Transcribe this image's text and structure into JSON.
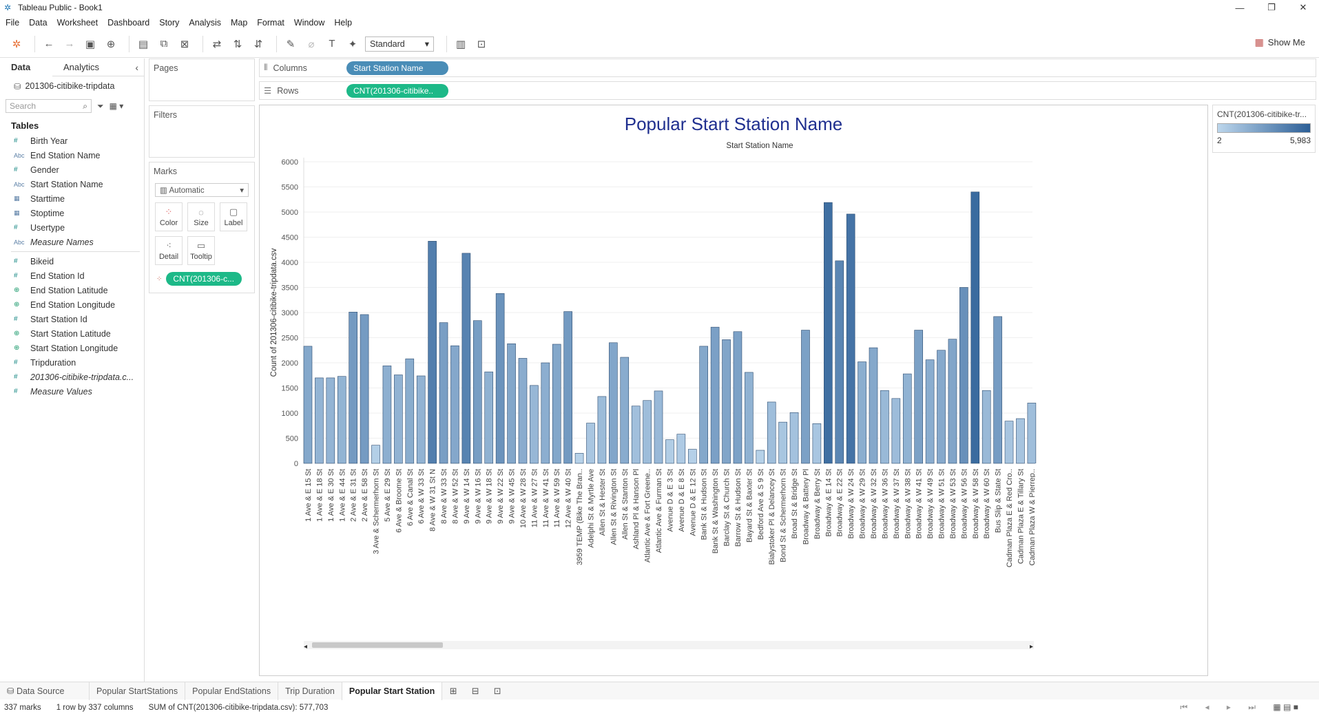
{
  "app": {
    "title": "Tableau Public - Book1"
  },
  "menu": [
    "File",
    "Data",
    "Worksheet",
    "Dashboard",
    "Story",
    "Analysis",
    "Map",
    "Format",
    "Window",
    "Help"
  ],
  "toolbar": {
    "fit_select": "Standard",
    "show_me": "Show Me"
  },
  "left_pane": {
    "tabs": [
      "Data",
      "Analytics"
    ],
    "datasource": "201306-citibike-tripdata",
    "search_placeholder": "Search",
    "tables_header": "Tables",
    "dimensions": [
      {
        "type": "#",
        "name": "Birth Year"
      },
      {
        "type": "Abc",
        "name": "End Station Name"
      },
      {
        "type": "#",
        "name": "Gender"
      },
      {
        "type": "Abc",
        "name": "Start Station Name"
      },
      {
        "type": "date",
        "name": "Starttime"
      },
      {
        "type": "date",
        "name": "Stoptime"
      },
      {
        "type": "#",
        "name": "Usertype"
      },
      {
        "type": "Abc",
        "name": "Measure Names",
        "italic": true
      }
    ],
    "measures": [
      {
        "type": "#",
        "name": "Bikeid"
      },
      {
        "type": "#",
        "name": "End Station Id"
      },
      {
        "type": "geo",
        "name": "End Station Latitude"
      },
      {
        "type": "geo",
        "name": "End Station Longitude"
      },
      {
        "type": "#",
        "name": "Start Station Id"
      },
      {
        "type": "geo",
        "name": "Start Station Latitude"
      },
      {
        "type": "geo",
        "name": "Start Station Longitude"
      },
      {
        "type": "#",
        "name": "Tripduration"
      },
      {
        "type": "#",
        "name": "201306-citibike-tripdata.c...",
        "italic": true
      },
      {
        "type": "#",
        "name": "Measure Values",
        "italic": true
      }
    ]
  },
  "cards": {
    "pages": "Pages",
    "filters": "Filters",
    "marks": "Marks",
    "marks_type": "Automatic",
    "mark_buttons": [
      "Color",
      "Size",
      "Label",
      "Detail",
      "Tooltip"
    ],
    "marks_pill": "CNT(201306-c..."
  },
  "shelves": {
    "columns_label": "Columns",
    "columns_pill": "Start Station Name",
    "rows_label": "Rows",
    "rows_pill": "CNT(201306-citibike.."
  },
  "legend": {
    "title": "CNT(201306-citibike-tr...",
    "min": "2",
    "max": "5,983",
    "low_color": "#bcd6ec",
    "high_color": "#2c5f97"
  },
  "chart_data": {
    "type": "bar",
    "title": "Popular Start Station Name",
    "column_header": "Start Station Name",
    "ylabel": "Count of 201306-citibike-tripdata.csv",
    "ylim": [
      0,
      6000
    ],
    "yticks": [
      0,
      500,
      1000,
      1500,
      2000,
      2500,
      3000,
      3500,
      4000,
      4500,
      5000,
      5500,
      6000
    ],
    "color_range": [
      2,
      5983
    ],
    "categories": [
      "1 Ave & E 15 St",
      "1 Ave & E 18 St",
      "1 Ave & E 30 St",
      "1 Ave & E 44 St",
      "2 Ave & E 31 St",
      "2 Ave & E 58 St",
      "3 Ave & Schermerhorn St",
      "5 Ave & E 29 St",
      "6 Ave & Broome St",
      "6 Ave & Canal St",
      "6 Ave & W 33 St",
      "8 Ave & W 31 St N",
      "8 Ave & W 33 St",
      "8 Ave & W 52 St",
      "9 Ave & W 14 St",
      "9 Ave & W 16 St",
      "9 Ave & W 18 St",
      "9 Ave & W 22 St",
      "9 Ave & W 45 St",
      "10 Ave & W 28 St",
      "11 Ave & W 27 St",
      "11 Ave & W 41 St",
      "11 Ave & W 59 St",
      "12 Ave & W 40 St",
      "3959 TEMP (Bike The Bran..",
      "Adelphi St & Myrtle Ave",
      "Allen St & Hester St",
      "Allen St & Rivington St",
      "Allen St & Stanton St",
      "Ashland Pl & Hanson Pl",
      "Atlantic Ave & Fort Greene..",
      "Atlantic Ave & Furman St",
      "Avenue D & E 3 St",
      "Avenue D & E 8 St",
      "Avenue D & E 12 St",
      "Bank St & Hudson St",
      "Bank St & Washington St",
      "Barclay St & Church St",
      "Barrow St & Hudson St",
      "Bayard St & Baxter St",
      "Bedford Ave & S 9 St",
      "Bialystoker Pl & Delancey St",
      "Bond St & Schermerhorn St",
      "Broad St & Bridge St",
      "Broadway & Battery Pl",
      "Broadway & Berry St",
      "Broadway & E 14 St",
      "Broadway & E 22 St",
      "Broadway & W 24 St",
      "Broadway & W 29 St",
      "Broadway & W 32 St",
      "Broadway & W 36 St",
      "Broadway & W 37 St",
      "Broadway & W 38 St",
      "Broadway & W 41 St",
      "Broadway & W 49 St",
      "Broadway & W 51 St",
      "Broadway & W 53 St",
      "Broadway & W 56 St",
      "Broadway & W 58 St",
      "Broadway & W 60 St",
      "Bus Slip & State St",
      "Cadman Plaza E & Red Cro..",
      "Cadman Plaza E & Tillary St",
      "Cadman Plaza W & Pierrep.."
    ],
    "values": [
      2330,
      1700,
      1700,
      1730,
      3010,
      2960,
      360,
      1940,
      1760,
      2080,
      1740,
      4420,
      2800,
      2340,
      4180,
      2840,
      1820,
      3380,
      2380,
      2090,
      1550,
      2000,
      2370,
      3020,
      200,
      800,
      1330,
      2400,
      2110,
      1140,
      1250,
      1440,
      470,
      580,
      280,
      2330,
      2710,
      2460,
      2620,
      1810,
      260,
      1220,
      820,
      1010,
      2650,
      790,
      5190,
      4030,
      4960,
      2020,
      2300,
      1450,
      1290,
      1780,
      2650,
      2060,
      2250,
      2470,
      3500,
      5400,
      1450,
      2920,
      840,
      890,
      1200
    ]
  },
  "sheet_tabs": [
    "Data Source",
    "Popular  StartStations",
    "Popular  EndStations",
    "Trip Duration",
    "Popular Start Station"
  ],
  "status": {
    "marks": "337 marks",
    "dims": "1 row by 337 columns",
    "sum": "SUM of CNT(201306-citibike-tripdata.csv): 577,703"
  }
}
